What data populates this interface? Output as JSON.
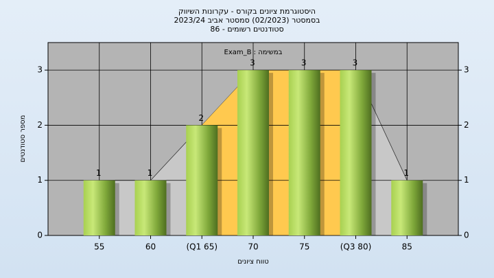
{
  "chart_data": {
    "type": "bar",
    "title": [
      "היסטוגרמת ציונים בקורס - עקרונות השיווק",
      "בסמסטר  (02/2023)  סמסטר אביב 2023/24",
      "סטודנטים רשומים - 86"
    ],
    "legend_label": "Exam_B : במשימה",
    "x_label": "טווח ציונים",
    "y_label": "מספר סטודנטים",
    "categories": [
      "55",
      "60",
      "(Q1 65)",
      "70",
      "75",
      "(Q3 80)",
      "85"
    ],
    "values": [
      1,
      1,
      2,
      3,
      3,
      3,
      1
    ],
    "quartile_range": [
      "(Q1 65)",
      "(Q3 80)"
    ],
    "color": "#9cc84a",
    "ylim": [
      0,
      3.5
    ],
    "yticks": [
      0,
      1,
      2,
      3
    ],
    "y2lim": [
      0,
      3.5
    ],
    "y2ticks": [
      0,
      1,
      2,
      3
    ],
    "grid": true
  }
}
